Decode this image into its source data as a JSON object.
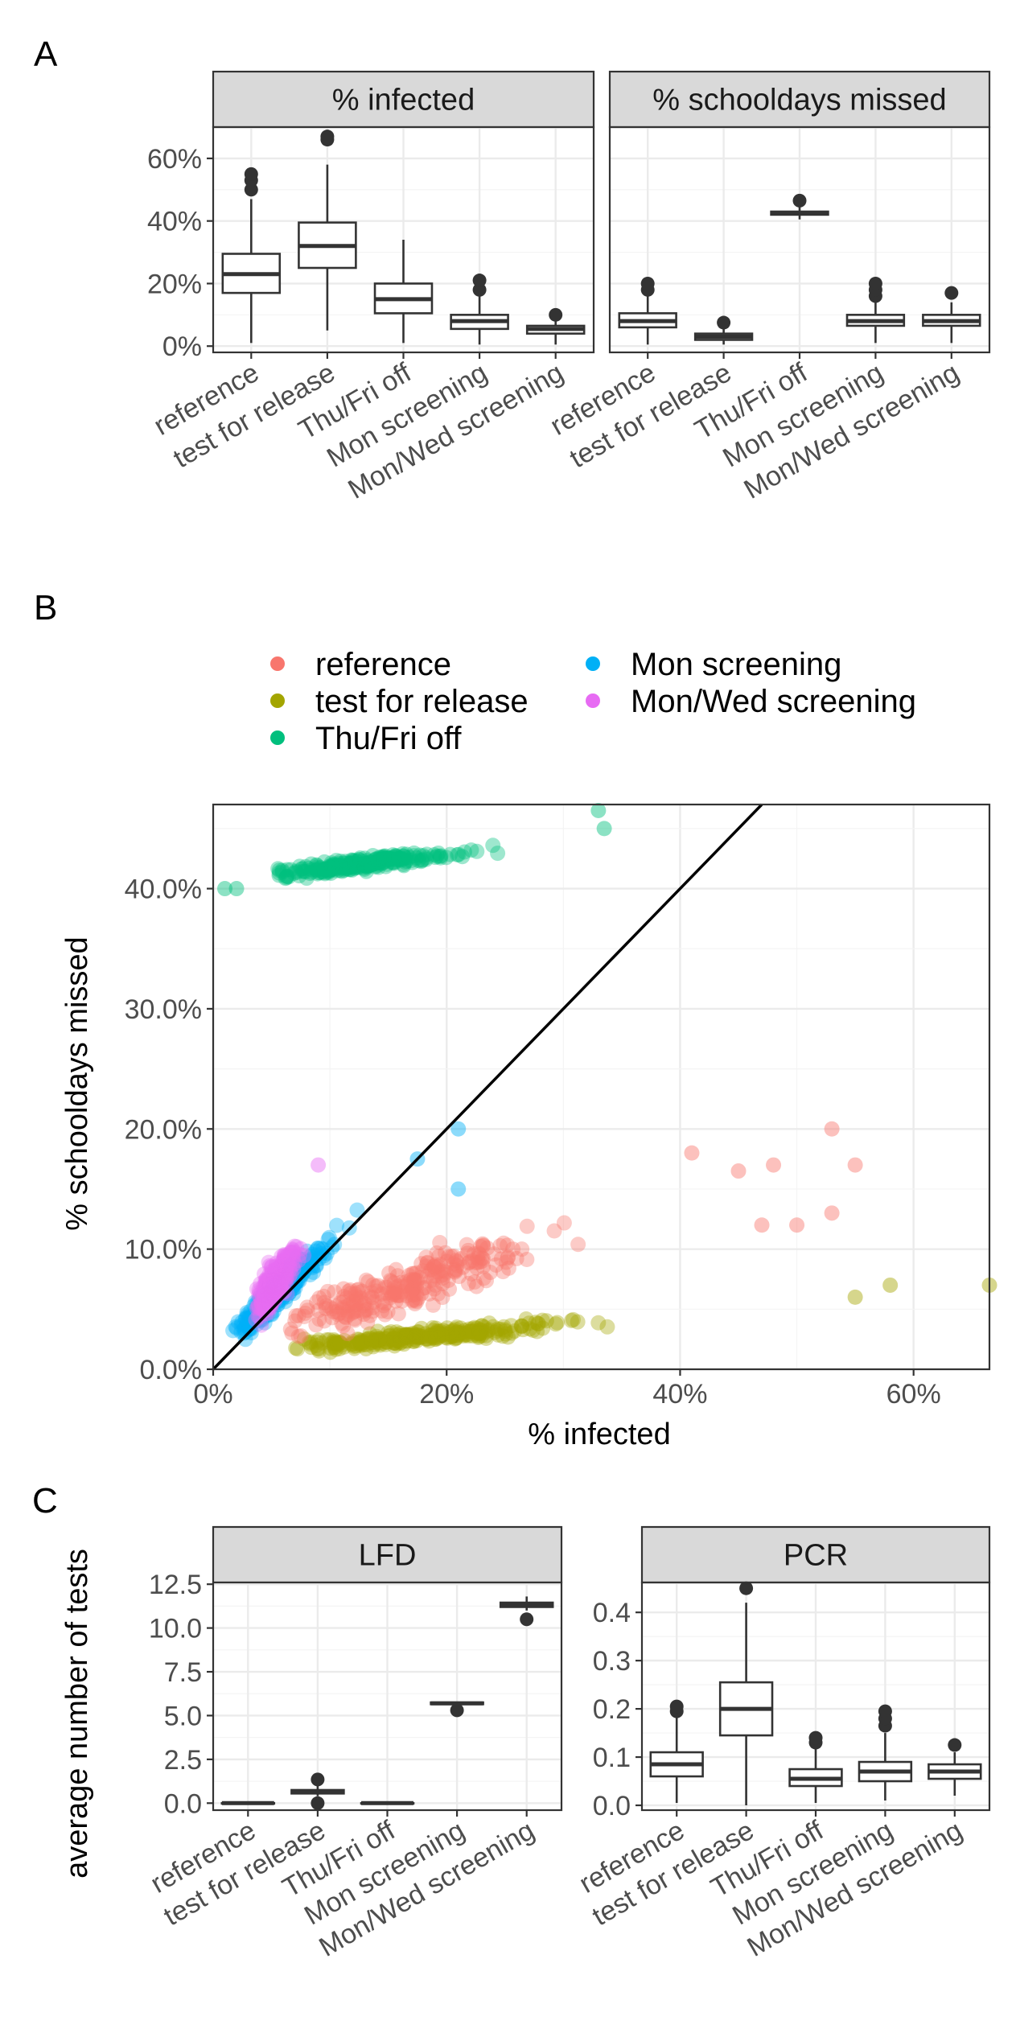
{
  "panel_letters": {
    "a": "A",
    "b": "B",
    "c": "C"
  },
  "colors": {
    "reference": "#F8766D",
    "test for release": "#A3A500",
    "Thu/Fri off": "#00BF7D",
    "Mon screening": "#00B0F6",
    "Mon/Wed screening": "#E76BF3",
    "identity_line": "#000000",
    "strip_fill": "#d9d9d9"
  },
  "chart_data": [
    {
      "type": "box",
      "id": "A",
      "panels": [
        {
          "strip": "% infected",
          "ylim": [
            -0.02,
            0.7
          ],
          "yticks": [
            0,
            0.2,
            0.4,
            0.6
          ],
          "ytick_labels": [
            "0%",
            "20%",
            "40%",
            "60%"
          ],
          "categories": [
            "reference",
            "test for release",
            "Thu/Fri off",
            "Mon screening",
            "Mon/Wed screening"
          ],
          "boxes": [
            {
              "min": 0.01,
              "q1": 0.17,
              "median": 0.23,
              "q3": 0.295,
              "max": 0.47,
              "outliers": [
                0.5,
                0.53,
                0.55
              ]
            },
            {
              "min": 0.05,
              "q1": 0.25,
              "median": 0.32,
              "q3": 0.395,
              "max": 0.58,
              "outliers": [
                0.66,
                0.67
              ]
            },
            {
              "min": 0.01,
              "q1": 0.105,
              "median": 0.15,
              "q3": 0.2,
              "max": 0.34,
              "outliers": []
            },
            {
              "min": 0.005,
              "q1": 0.055,
              "median": 0.08,
              "q3": 0.1,
              "max": 0.16,
              "outliers": [
                0.18,
                0.21
              ]
            },
            {
              "min": 0.005,
              "q1": 0.04,
              "median": 0.055,
              "q3": 0.065,
              "max": 0.09,
              "outliers": [
                0.1
              ]
            }
          ]
        },
        {
          "strip": "% schooldays missed",
          "ylim": [
            -0.02,
            0.7
          ],
          "categories": [
            "reference",
            "test for release",
            "Thu/Fri off",
            "Mon screening",
            "Mon/Wed screening"
          ],
          "boxes": [
            {
              "min": 0.005,
              "q1": 0.06,
              "median": 0.08,
              "q3": 0.105,
              "max": 0.16,
              "outliers": [
                0.18,
                0.2
              ]
            },
            {
              "min": 0.005,
              "q1": 0.02,
              "median": 0.03,
              "q3": 0.04,
              "max": 0.06,
              "outliers": [
                0.075
              ]
            },
            {
              "min": 0.405,
              "q1": 0.42,
              "median": 0.425,
              "q3": 0.43,
              "max": 0.445,
              "outliers": [
                0.465
              ]
            },
            {
              "min": 0.01,
              "q1": 0.065,
              "median": 0.08,
              "q3": 0.1,
              "max": 0.14,
              "outliers": [
                0.16,
                0.18,
                0.2
              ]
            },
            {
              "min": 0.01,
              "q1": 0.065,
              "median": 0.08,
              "q3": 0.1,
              "max": 0.14,
              "outliers": [
                0.17
              ]
            }
          ]
        }
      ]
    },
    {
      "type": "scatter",
      "id": "B",
      "xlabel": "% infected",
      "ylabel": "% schooldays missed",
      "xlim": [
        0,
        0.665
      ],
      "ylim": [
        0,
        0.47
      ],
      "xticks": [
        0,
        0.2,
        0.4,
        0.6
      ],
      "xtick_labels": [
        "0%",
        "20%",
        "40%",
        "60%"
      ],
      "yticks": [
        0,
        0.1,
        0.2,
        0.3,
        0.4
      ],
      "ytick_labels": [
        "0.0%",
        "10.0%",
        "20.0%",
        "30.0%",
        "40.0%"
      ],
      "legend": {
        "placement": "top",
        "entries": [
          "reference",
          "test for release",
          "Thu/Fri off",
          "Mon screening",
          "Mon/Wed screening"
        ]
      },
      "identity_line": {
        "from": [
          0,
          0
        ],
        "to": [
          0.47,
          0.47
        ]
      },
      "series": [
        {
          "name": "reference",
          "x_range": [
            0.02,
            0.56
          ],
          "y_range": [
            0.01,
            0.2
          ],
          "n": 260,
          "points": [
            [
              0.53,
              0.2
            ],
            [
              0.55,
              0.17
            ],
            [
              0.41,
              0.18
            ],
            [
              0.48,
              0.17
            ],
            [
              0.45,
              0.165
            ],
            [
              0.53,
              0.13
            ],
            [
              0.47,
              0.12
            ],
            [
              0.5,
              0.12
            ]
          ]
        },
        {
          "name": "test for release",
          "x_range": [
            0.05,
            0.665
          ],
          "y_range": [
            0.005,
            0.075
          ],
          "n": 280,
          "points": [
            [
              0.665,
              0.07
            ],
            [
              0.58,
              0.07
            ],
            [
              0.55,
              0.06
            ]
          ]
        },
        {
          "name": "Thu/Fri off",
          "x_range": [
            0.01,
            0.34
          ],
          "y_range": [
            0.4,
            0.465
          ],
          "n": 260,
          "points": [
            [
              0.01,
              0.4
            ],
            [
              0.02,
              0.4
            ],
            [
              0.33,
              0.465
            ],
            [
              0.335,
              0.45
            ]
          ]
        },
        {
          "name": "Mon screening",
          "x_range": [
            0.01,
            0.21
          ],
          "y_range": [
            0.01,
            0.2
          ],
          "n": 260,
          "points": [
            [
              0.21,
              0.2
            ],
            [
              0.21,
              0.15
            ],
            [
              0.175,
              0.175
            ]
          ]
        },
        {
          "name": "Mon/Wed screening",
          "x_range": [
            0.01,
            0.1
          ],
          "y_range": [
            0.01,
            0.17
          ],
          "n": 260,
          "points": [
            [
              0.09,
              0.17
            ]
          ]
        }
      ]
    },
    {
      "type": "box",
      "id": "C",
      "ylabel": "average number of tests",
      "panels": [
        {
          "strip": "LFD",
          "ylim": [
            -0.4,
            12.6
          ],
          "yticks": [
            0,
            2.5,
            5,
            7.5,
            10,
            12.5
          ],
          "ytick_labels": [
            "0.0",
            "2.5",
            "5.0",
            "7.5",
            "10.0",
            "12.5"
          ],
          "categories": [
            "reference",
            "test for release",
            "Thu/Fri off",
            "Mon screening",
            "Mon/Wed screening"
          ],
          "boxes": [
            {
              "min": 0,
              "q1": 0,
              "median": 0,
              "q3": 0,
              "max": 0,
              "outliers": []
            },
            {
              "min": 0.4,
              "q1": 0.55,
              "median": 0.65,
              "q3": 0.75,
              "max": 1.0,
              "outliers": [
                0,
                1.35
              ]
            },
            {
              "min": 0,
              "q1": 0,
              "median": 0,
              "q3": 0,
              "max": 0,
              "outliers": []
            },
            {
              "min": 5.6,
              "q1": 5.65,
              "median": 5.7,
              "q3": 5.75,
              "max": 5.8,
              "outliers": [
                5.3
              ]
            },
            {
              "min": 11.0,
              "q1": 11.2,
              "median": 11.35,
              "q3": 11.45,
              "max": 11.8,
              "outliers": [
                10.5
              ]
            }
          ]
        },
        {
          "strip": "PCR",
          "ylim": [
            -0.01,
            0.462
          ],
          "yticks": [
            0,
            0.1,
            0.2,
            0.3,
            0.4
          ],
          "ytick_labels": [
            "0.0",
            "0.1",
            "0.2",
            "0.3",
            "0.4"
          ],
          "categories": [
            "reference",
            "test for release",
            "Thu/Fri off",
            "Mon screening",
            "Mon/Wed screening"
          ],
          "boxes": [
            {
              "min": 0.005,
              "q1": 0.06,
              "median": 0.085,
              "q3": 0.11,
              "max": 0.185,
              "outliers": [
                0.195,
                0.205
              ]
            },
            {
              "min": 0.0,
              "q1": 0.145,
              "median": 0.2,
              "q3": 0.255,
              "max": 0.42,
              "outliers": [
                0.45
              ]
            },
            {
              "min": 0.005,
              "q1": 0.04,
              "median": 0.055,
              "q3": 0.075,
              "max": 0.12,
              "outliers": [
                0.13,
                0.14
              ]
            },
            {
              "min": 0.01,
              "q1": 0.05,
              "median": 0.07,
              "q3": 0.09,
              "max": 0.15,
              "outliers": [
                0.165,
                0.18,
                0.195
              ]
            },
            {
              "min": 0.02,
              "q1": 0.055,
              "median": 0.07,
              "q3": 0.085,
              "max": 0.11,
              "outliers": [
                0.125
              ]
            }
          ]
        }
      ]
    }
  ]
}
